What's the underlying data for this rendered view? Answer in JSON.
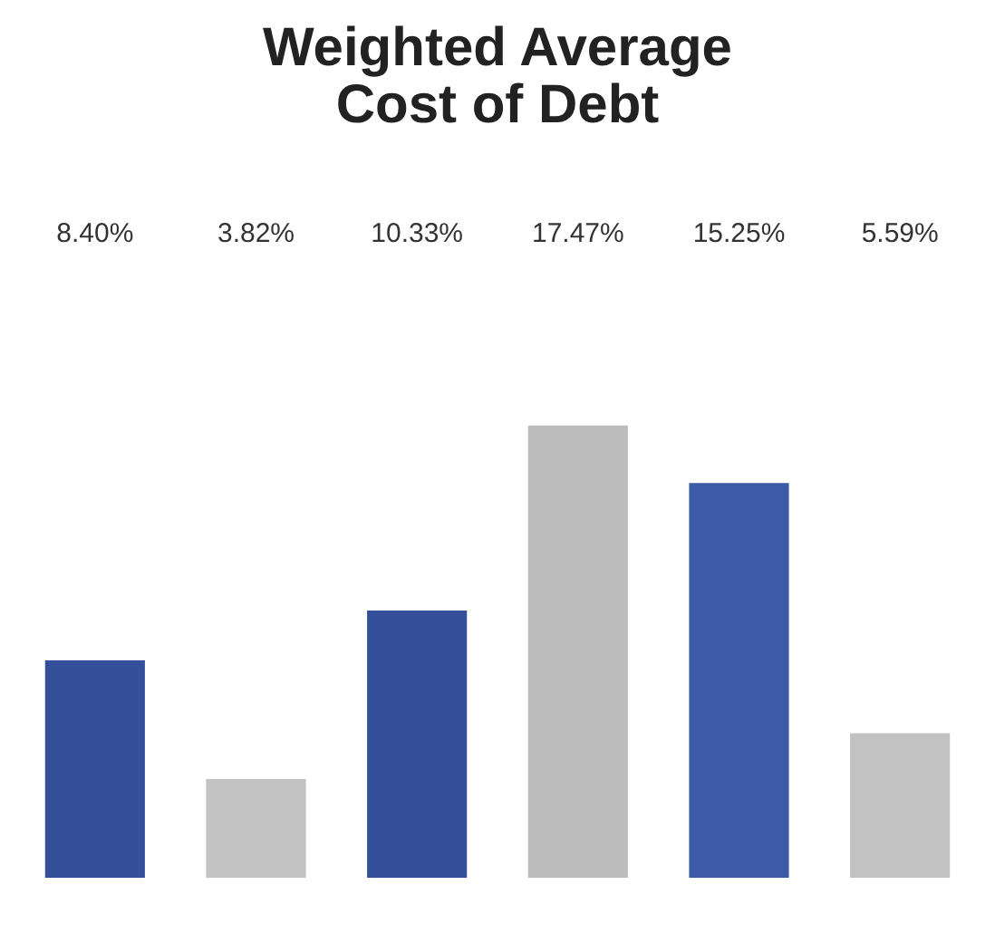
{
  "chart_data": {
    "type": "bar",
    "title": "Weighted Average\nCost of Debt",
    "categories": [
      null,
      null,
      null,
      null,
      null,
      null
    ],
    "values": [
      8.4,
      3.82,
      10.33,
      17.47,
      15.25,
      5.59
    ],
    "colors": [
      "#34509a",
      "#c2c2c2",
      "#34509a",
      "#bcbcbc",
      "#3d5aa6",
      "#c2c2c2"
    ],
    "value_labels": [
      "8.40%",
      "3.82%",
      "10.33%",
      "17.47%",
      "15.25%",
      "5.59%"
    ],
    "grid": false,
    "legend": false
  }
}
